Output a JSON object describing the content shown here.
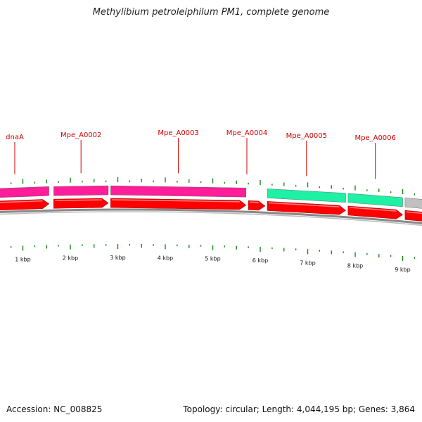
{
  "title": "Methylibium petroleiphilum PM1, complete genome",
  "footer": {
    "accession": "Accession: NC_008825",
    "summary": "Topology: circular; Length: 4,044,195 bp; Genes: 3,864"
  },
  "colors": {
    "gene_red": "#ff0000",
    "cds_magenta": "#ff1e9a",
    "cds_green": "#1ef0a4",
    "cds_gray": "#c0c0c0",
    "tick_green": "#138a13",
    "backbone_gray": "#888888",
    "label_red": "#d00000"
  },
  "genes": [
    {
      "name": "dnaA",
      "start_kbp": 0.0,
      "end_kbp": 1.55,
      "category": "magenta"
    },
    {
      "name": "Mpe_A0002",
      "start_kbp": 1.65,
      "end_kbp": 2.8,
      "category": "magenta"
    },
    {
      "name": "Mpe_A0003",
      "start_kbp": 2.85,
      "end_kbp": 5.7,
      "category": "magenta"
    },
    {
      "name": "Mpe_A0004",
      "start_kbp": 5.75,
      "end_kbp": 6.1,
      "category": "none"
    },
    {
      "name": "Mpe_A0005",
      "start_kbp": 6.15,
      "end_kbp": 7.8,
      "category": "green"
    },
    {
      "name": "Mpe_A0006",
      "start_kbp": 7.85,
      "end_kbp": 9.0,
      "category": "green"
    },
    {
      "name": "",
      "start_kbp": 9.05,
      "end_kbp": 9.6,
      "category": "gray"
    }
  ],
  "kbp_ticks": [
    {
      "kbp": 1,
      "label": "1 kbp"
    },
    {
      "kbp": 2,
      "label": "2 kbp"
    },
    {
      "kbp": 3,
      "label": "3 kbp"
    },
    {
      "kbp": 4,
      "label": "4 kbp"
    },
    {
      "kbp": 5,
      "label": "5 kbp"
    },
    {
      "kbp": 6,
      "label": "6 kbp"
    },
    {
      "kbp": 7,
      "label": "7 kbp"
    },
    {
      "kbp": 8,
      "label": "8 kbp"
    },
    {
      "kbp": 9,
      "label": "9 kbp"
    }
  ]
}
